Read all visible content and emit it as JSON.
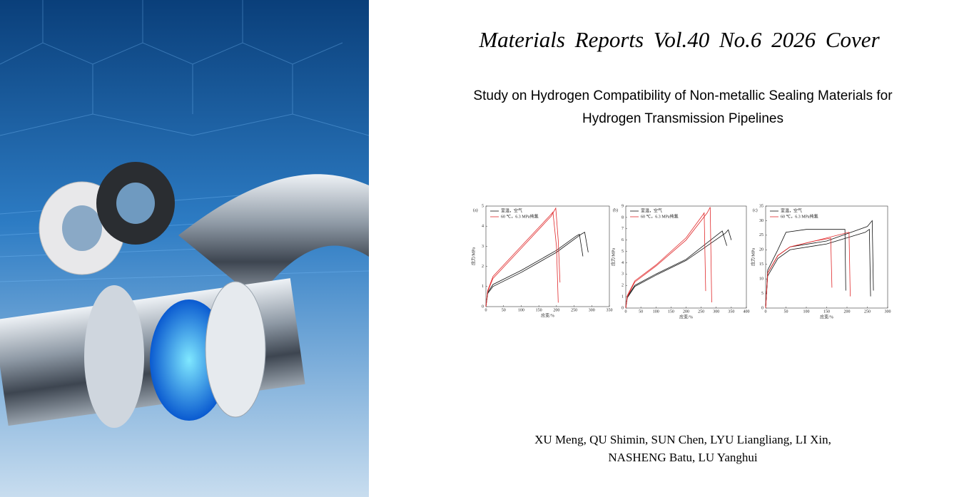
{
  "header": {
    "title": "Materials Reports  Vol.40  No.6  2026  Cover"
  },
  "article": {
    "title_lines": [
      "Study on Hydrogen Compatibility of Non-metallic Sealing Materials for",
      "Hydrogen Transmission Pipelines"
    ],
    "authors_lines": [
      "XU Meng, QU Shimin, SUN Chen, LYU Liangliang, LI Xin,",
      "NASHENG Batu, LU Yanghui"
    ]
  },
  "figure": {
    "panels": [
      {
        "label": "(a)",
        "xlabel": "应变/%",
        "ylabel": "应力/MPa",
        "xlim": [
          0,
          350
        ],
        "xticks": [
          0,
          50,
          100,
          150,
          200,
          250,
          300,
          350
        ],
        "ylim": [
          0,
          5
        ],
        "yticks": [
          0,
          1,
          2,
          3,
          4,
          5
        ],
        "series": [
          {
            "name": "室温，空气",
            "color": "#111111",
            "curves": [
              {
                "x": [
                  0,
                  5,
                  20,
                  100,
                  200,
                  255,
                  265,
                  275
                ],
                "y": [
                  0,
                  0.7,
                  1.1,
                  1.8,
                  2.8,
                  3.5,
                  3.6,
                  2.5
                ]
              },
              {
                "x": [
                  0,
                  5,
                  20,
                  100,
                  200,
                  270,
                  280,
                  290
                ],
                "y": [
                  0,
                  0.65,
                  1.0,
                  1.7,
                  2.7,
                  3.6,
                  3.7,
                  2.7
                ]
              }
            ]
          },
          {
            "name": "60 ℃，6.3 MPa纯氢",
            "color": "#e0282a",
            "curves": [
              {
                "x": [
                  0,
                  5,
                  20,
                  100,
                  180,
                  190,
                  200,
                  205
                ],
                "y": [
                  0,
                  0.8,
                  1.5,
                  3.0,
                  4.5,
                  4.7,
                  3.0,
                  0.2
                ]
              },
              {
                "x": [
                  0,
                  5,
                  20,
                  100,
                  185,
                  198,
                  205,
                  210
                ],
                "y": [
                  0,
                  0.75,
                  1.4,
                  2.9,
                  4.5,
                  4.9,
                  3.3,
                  1.2
                ]
              }
            ]
          }
        ]
      },
      {
        "label": "(b)",
        "xlabel": "应变/%",
        "ylabel": "应力/MPa",
        "xlim": [
          0,
          400
        ],
        "xticks": [
          0,
          50,
          100,
          150,
          200,
          250,
          300,
          350,
          400
        ],
        "ylim": [
          0,
          9
        ],
        "yticks": [
          0,
          1,
          2,
          3,
          4,
          5,
          6,
          7,
          8,
          9
        ],
        "series": [
          {
            "name": "室温，空气",
            "color": "#111111",
            "curves": [
              {
                "x": [
                  0,
                  5,
                  30,
                  100,
                  200,
                  310,
                  320,
                  335
                ],
                "y": [
                  0,
                  1.0,
                  2.0,
                  3.0,
                  4.3,
                  6.6,
                  6.8,
                  5.5
                ]
              },
              {
                "x": [
                  0,
                  5,
                  30,
                  100,
                  200,
                  330,
                  340,
                  350
                ],
                "y": [
                  0,
                  0.9,
                  1.9,
                  2.9,
                  4.2,
                  6.6,
                  6.9,
                  6.0
                ]
              }
            ]
          },
          {
            "name": "60 ℃，6.3 MPa纯氢",
            "color": "#e0282a",
            "curves": [
              {
                "x": [
                  0,
                  5,
                  30,
                  100,
                  200,
                  255,
                  260,
                  265
                ],
                "y": [
                  0,
                  1.1,
                  2.4,
                  3.8,
                  6.2,
                  8.2,
                  8.4,
                  1.5
                ]
              },
              {
                "x": [
                  0,
                  5,
                  30,
                  100,
                  200,
                  270,
                  280,
                  285
                ],
                "y": [
                  0,
                  1.0,
                  2.3,
                  3.7,
                  6.0,
                  8.4,
                  8.9,
                  0.5
                ]
              }
            ]
          }
        ]
      },
      {
        "label": "(c)",
        "xlabel": "应变/%",
        "ylabel": "应力/MPa",
        "xlim": [
          0,
          300
        ],
        "xticks": [
          0,
          50,
          100,
          150,
          200,
          250,
          300
        ],
        "ylim": [
          0,
          35
        ],
        "yticks": [
          0,
          5,
          10,
          15,
          20,
          25,
          30,
          35
        ],
        "series": [
          {
            "name": "室温，空气",
            "color": "#111111",
            "curves": [
              {
                "x": [
                  0,
                  5,
                  30,
                  50,
                  100,
                  195,
                  197
                ],
                "y": [
                  0,
                  13,
                  20,
                  26,
                  27,
                  27,
                  6
                ]
              },
              {
                "x": [
                  0,
                  5,
                  30,
                  60,
                  150,
                  250,
                  262,
                  265
                ],
                "y": [
                  0,
                  12,
                  18,
                  21,
                  23,
                  28,
                  30,
                  6
                ]
              },
              {
                "x": [
                  0,
                  5,
                  30,
                  60,
                  150,
                  245,
                  255,
                  258
                ],
                "y": [
                  0,
                  11,
                  17,
                  20,
                  22,
                  26,
                  27,
                  4
                ]
              }
            ]
          },
          {
            "name": "60 ℃，6.3 MPa纯氢",
            "color": "#e0282a",
            "curves": [
              {
                "x": [
                  0,
                  5,
                  30,
                  60,
                  120,
                  160,
                  163
                ],
                "y": [
                  0,
                  12,
                  18,
                  21,
                  23,
                  24,
                  7
                ]
              },
              {
                "x": [
                  0,
                  5,
                  30,
                  60,
                  120,
                  205,
                  208
                ],
                "y": [
                  0,
                  12,
                  18,
                  21,
                  23,
                  26,
                  4
                ]
              }
            ]
          }
        ]
      }
    ]
  }
}
